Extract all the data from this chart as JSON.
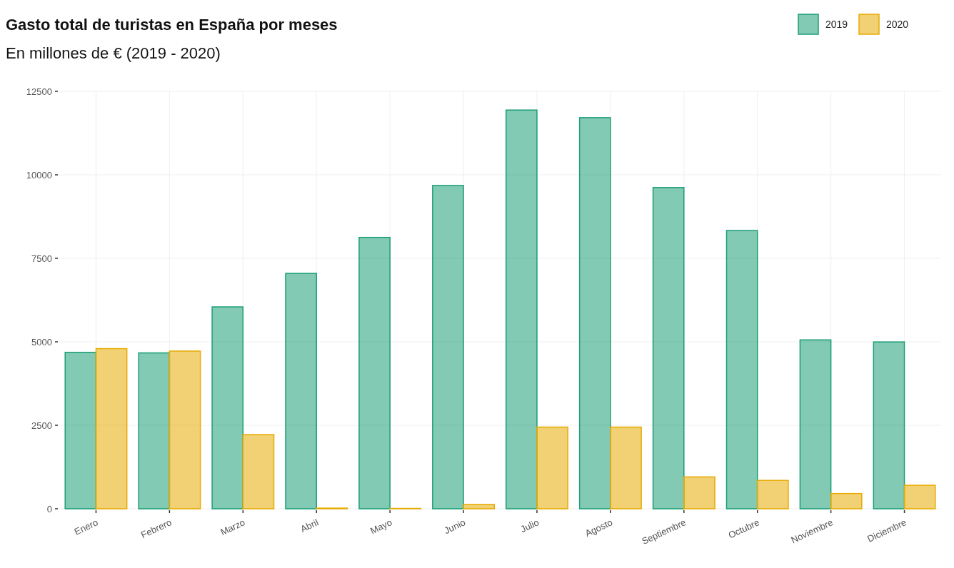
{
  "chart_data": {
    "type": "bar",
    "title": "Gasto total de turistas en España por meses",
    "subtitle": "En millones de € (2019 - 2020)",
    "categories": [
      "Enero",
      "Febrero",
      "Marzo",
      "Abril",
      "Mayo",
      "Junio",
      "Julio",
      "Agosto",
      "Septiembre",
      "Octubre",
      "Noviembre",
      "Diciembre"
    ],
    "series": [
      {
        "name": "2019",
        "color": "#1b9e77",
        "values": [
          4685,
          4667,
          6046,
          7048,
          8126,
          9681,
          11940,
          11712,
          9619,
          8333,
          5058,
          4996
        ]
      },
      {
        "name": "2020",
        "color": "#e6ab02",
        "values": [
          4796,
          4722,
          2222,
          20,
          10,
          130,
          2446,
          2446,
          954,
          850,
          456,
          705
        ]
      }
    ],
    "ylim": [
      0,
      12500
    ],
    "yticks": [
      0,
      2500,
      5000,
      7500,
      10000,
      12500
    ],
    "grid": true,
    "legend": "top right"
  }
}
